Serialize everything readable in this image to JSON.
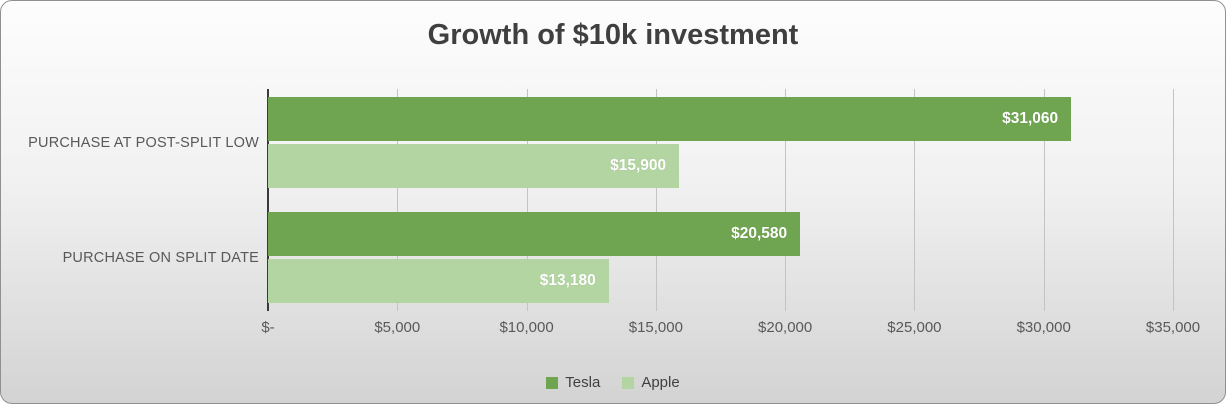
{
  "chart_data": {
    "type": "bar",
    "orientation": "horizontal",
    "title": "Growth of $10k investment",
    "categories": [
      "PURCHASE AT POST-SPLIT LOW",
      "PURCHASE ON SPLIT DATE"
    ],
    "series": [
      {
        "name": "Tesla",
        "color": "#6fa450",
        "values": [
          31060,
          20580
        ],
        "labels": [
          "$31,060",
          "$20,580"
        ]
      },
      {
        "name": "Apple",
        "color": "#b3d5a1",
        "values": [
          15900,
          13180
        ],
        "labels": [
          "$15,900",
          "$13,180"
        ]
      }
    ],
    "x_axis": {
      "min": 0,
      "max": 35000,
      "tick_step": 5000,
      "ticks": [
        "$-",
        "$5,000",
        "$10,000",
        "$15,000",
        "$20,000",
        "$25,000",
        "$30,000",
        "$35,000"
      ]
    },
    "legend": {
      "position": "bottom",
      "entries": [
        "Tesla",
        "Apple"
      ]
    },
    "grid": "vertical",
    "data_label_style": "inside-end-white-bold"
  }
}
